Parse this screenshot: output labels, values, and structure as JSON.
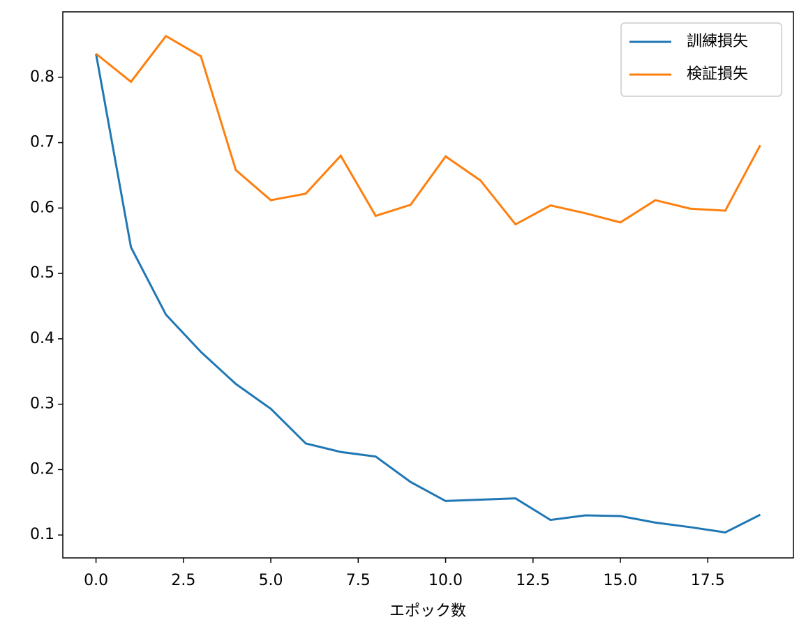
{
  "chart_data": {
    "type": "line",
    "x_label": "エポック数",
    "x": [
      0,
      1,
      2,
      3,
      4,
      5,
      6,
      7,
      8,
      9,
      10,
      11,
      12,
      13,
      14,
      15,
      16,
      17,
      18,
      19
    ],
    "series": [
      {
        "name": "訓練損失",
        "color": "#1f77b4",
        "values": [
          0.836,
          0.54,
          0.437,
          0.38,
          0.331,
          0.293,
          0.24,
          0.227,
          0.22,
          0.181,
          0.152,
          0.154,
          0.156,
          0.123,
          0.13,
          0.129,
          0.119,
          0.112,
          0.104,
          0.131
        ]
      },
      {
        "name": "検証損失",
        "color": "#ff7f0e",
        "values": [
          0.836,
          0.793,
          0.863,
          0.832,
          0.658,
          0.612,
          0.622,
          0.68,
          0.588,
          0.605,
          0.679,
          0.642,
          0.575,
          0.604,
          0.592,
          0.578,
          0.612,
          0.599,
          0.596,
          0.696
        ]
      }
    ],
    "xlim": [
      -0.95,
      19.95
    ],
    "ylim": [
      0.065,
      0.9
    ],
    "xticks": [
      {
        "value": 0,
        "label": "0.0"
      },
      2.5,
      {
        "value": 5,
        "label": "5.0"
      },
      7.5,
      {
        "value": 10,
        "label": "10.0"
      },
      12.5,
      {
        "value": 15,
        "label": "15.0"
      },
      17.5
    ],
    "yticks": [
      0.1,
      0.2,
      0.3,
      0.4,
      0.5,
      0.6,
      0.7,
      0.8
    ],
    "grid": false,
    "legend": "upper right"
  }
}
